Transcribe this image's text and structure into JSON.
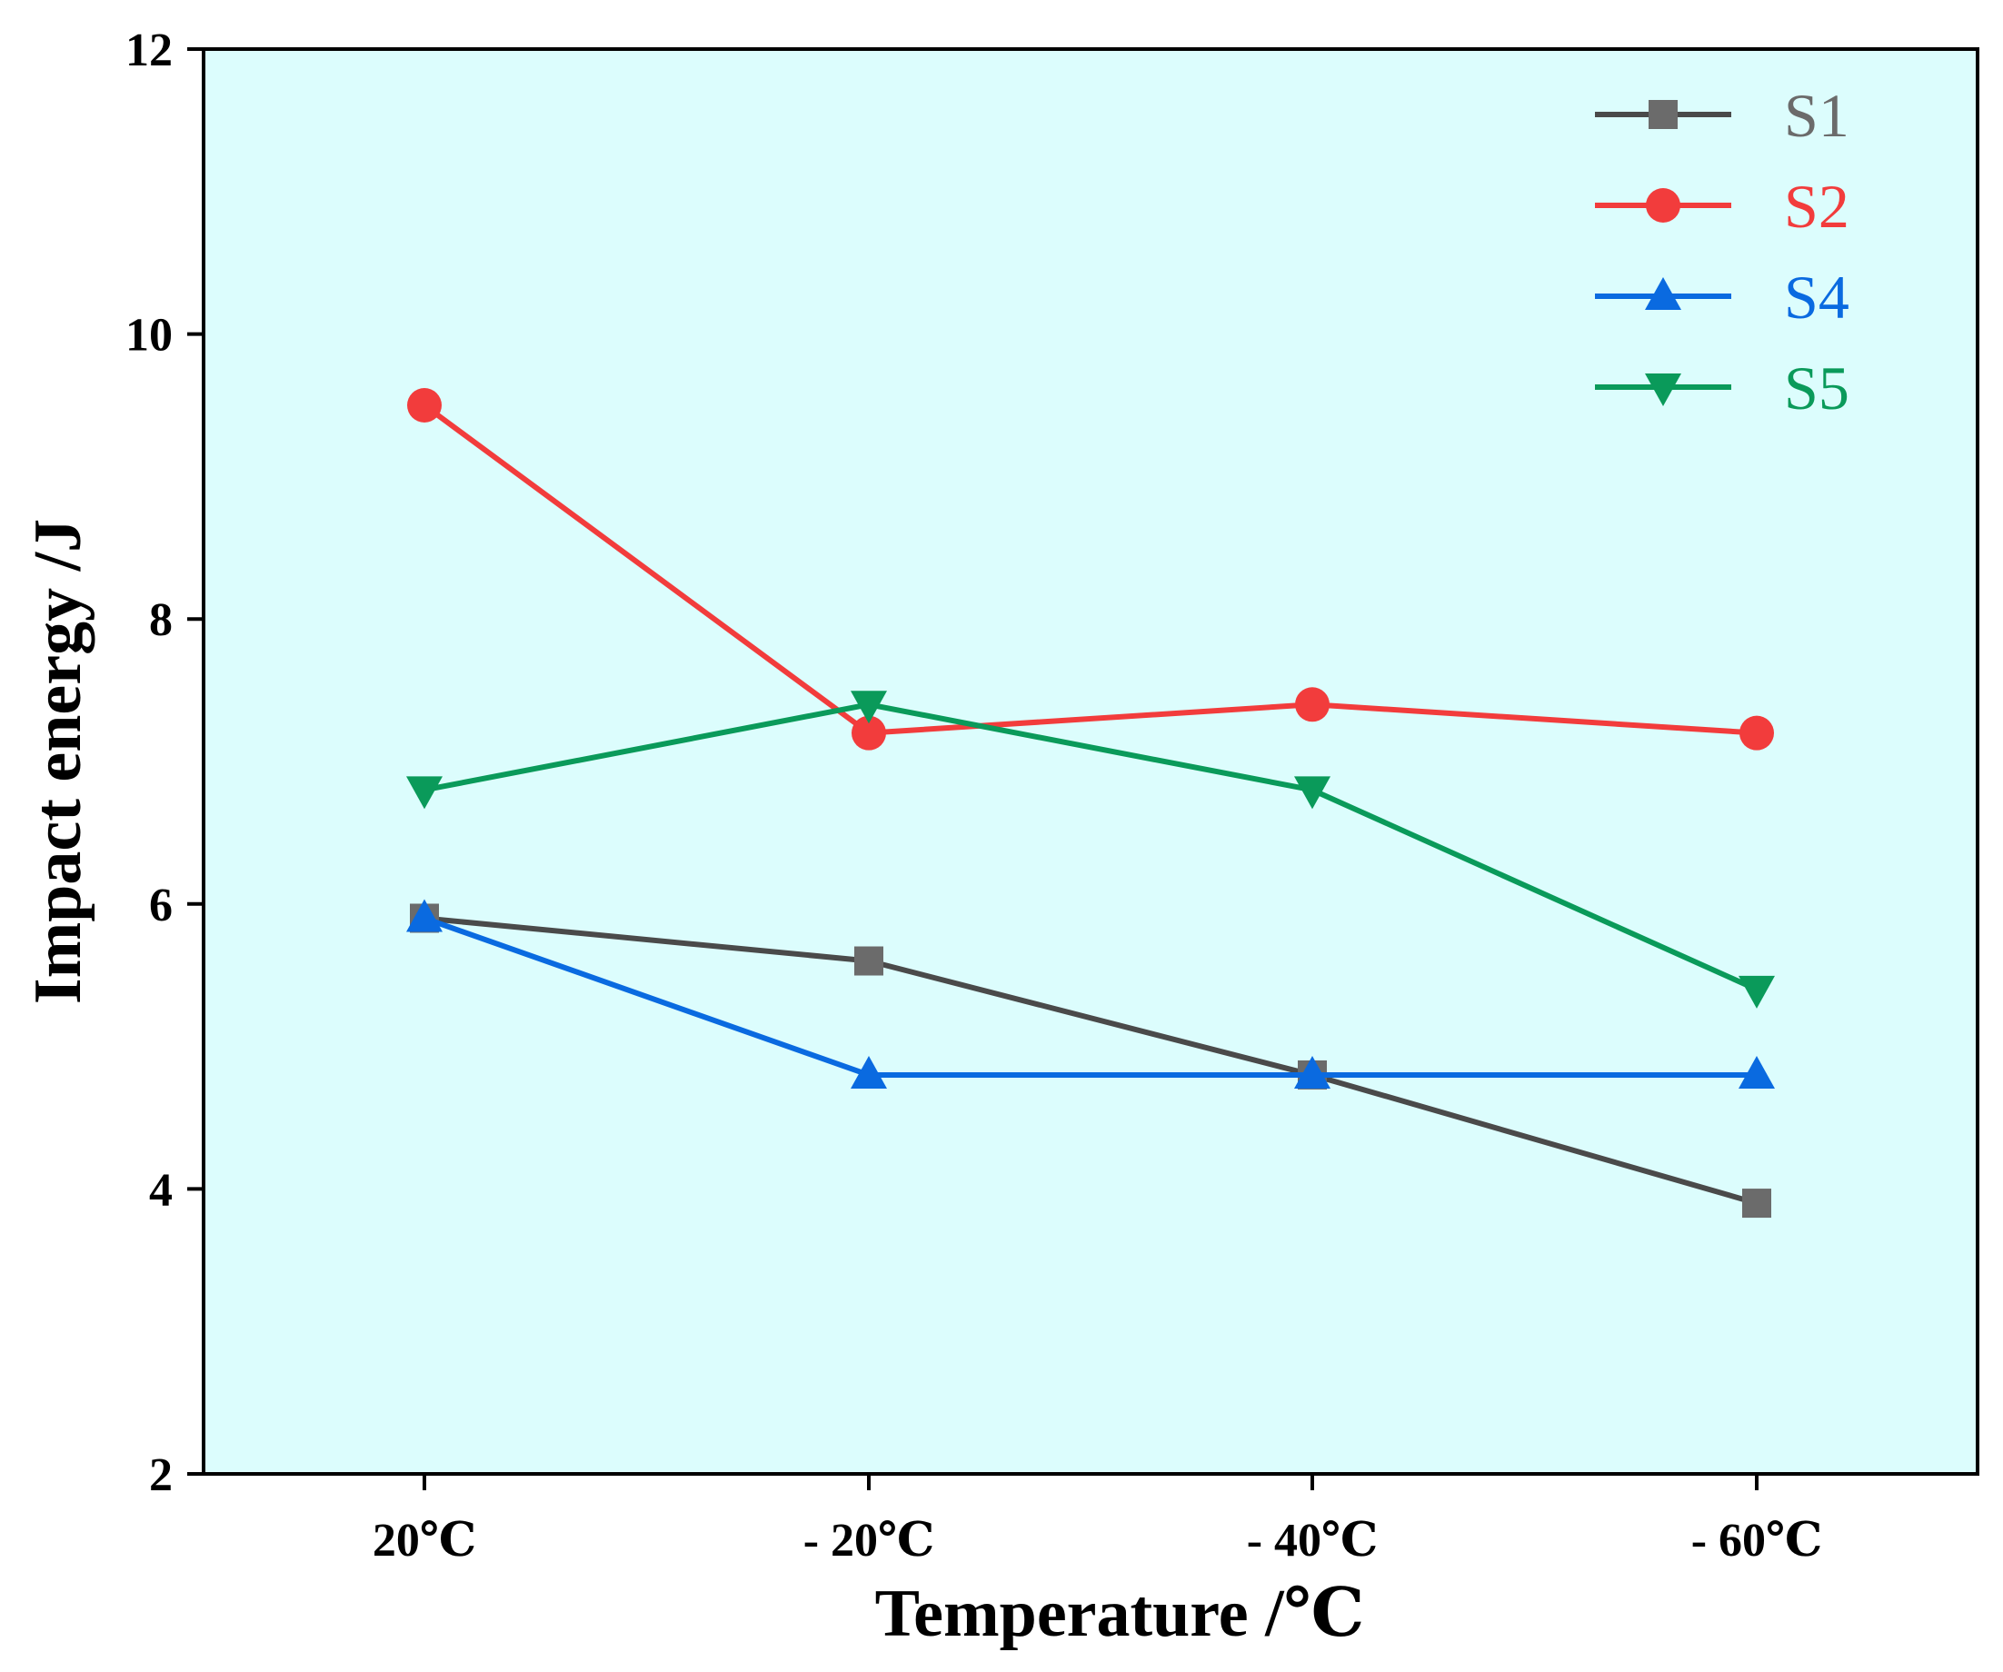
{
  "chart_data": {
    "type": "line",
    "title": "",
    "xlabel": "Temperature /℃",
    "ylabel": "Impact energy /J",
    "categories": [
      "20℃",
      "- 20℃",
      "- 40℃",
      "- 60℃"
    ],
    "ylim": [
      2,
      12
    ],
    "yticks": [
      2,
      4,
      6,
      8,
      10,
      12
    ],
    "grid": false,
    "legend_position": "top-right",
    "background": "#dcfdfd",
    "series": [
      {
        "name": "S1",
        "color": "#4a4a4a",
        "marker_color": "#6b6b6b",
        "label_color": "#6b6b6b",
        "marker": "square",
        "values": [
          5.9,
          5.6,
          4.8,
          3.9
        ]
      },
      {
        "name": "S2",
        "color": "#f23c3c",
        "marker_color": "#f23c3c",
        "label_color": "#f23c3c",
        "marker": "circle",
        "values": [
          9.5,
          7.2,
          7.4,
          7.2
        ]
      },
      {
        "name": "S4",
        "color": "#0a6ae0",
        "marker_color": "#0a6ae0",
        "label_color": "#0a6ae0",
        "marker": "triangle-up",
        "values": [
          5.9,
          4.8,
          4.8,
          4.8
        ]
      },
      {
        "name": "S5",
        "color": "#0a9a5a",
        "marker_color": "#0a9a5a",
        "label_color": "#0a9a5a",
        "marker": "triangle-down",
        "values": [
          6.8,
          7.4,
          6.8,
          5.4
        ]
      }
    ]
  }
}
